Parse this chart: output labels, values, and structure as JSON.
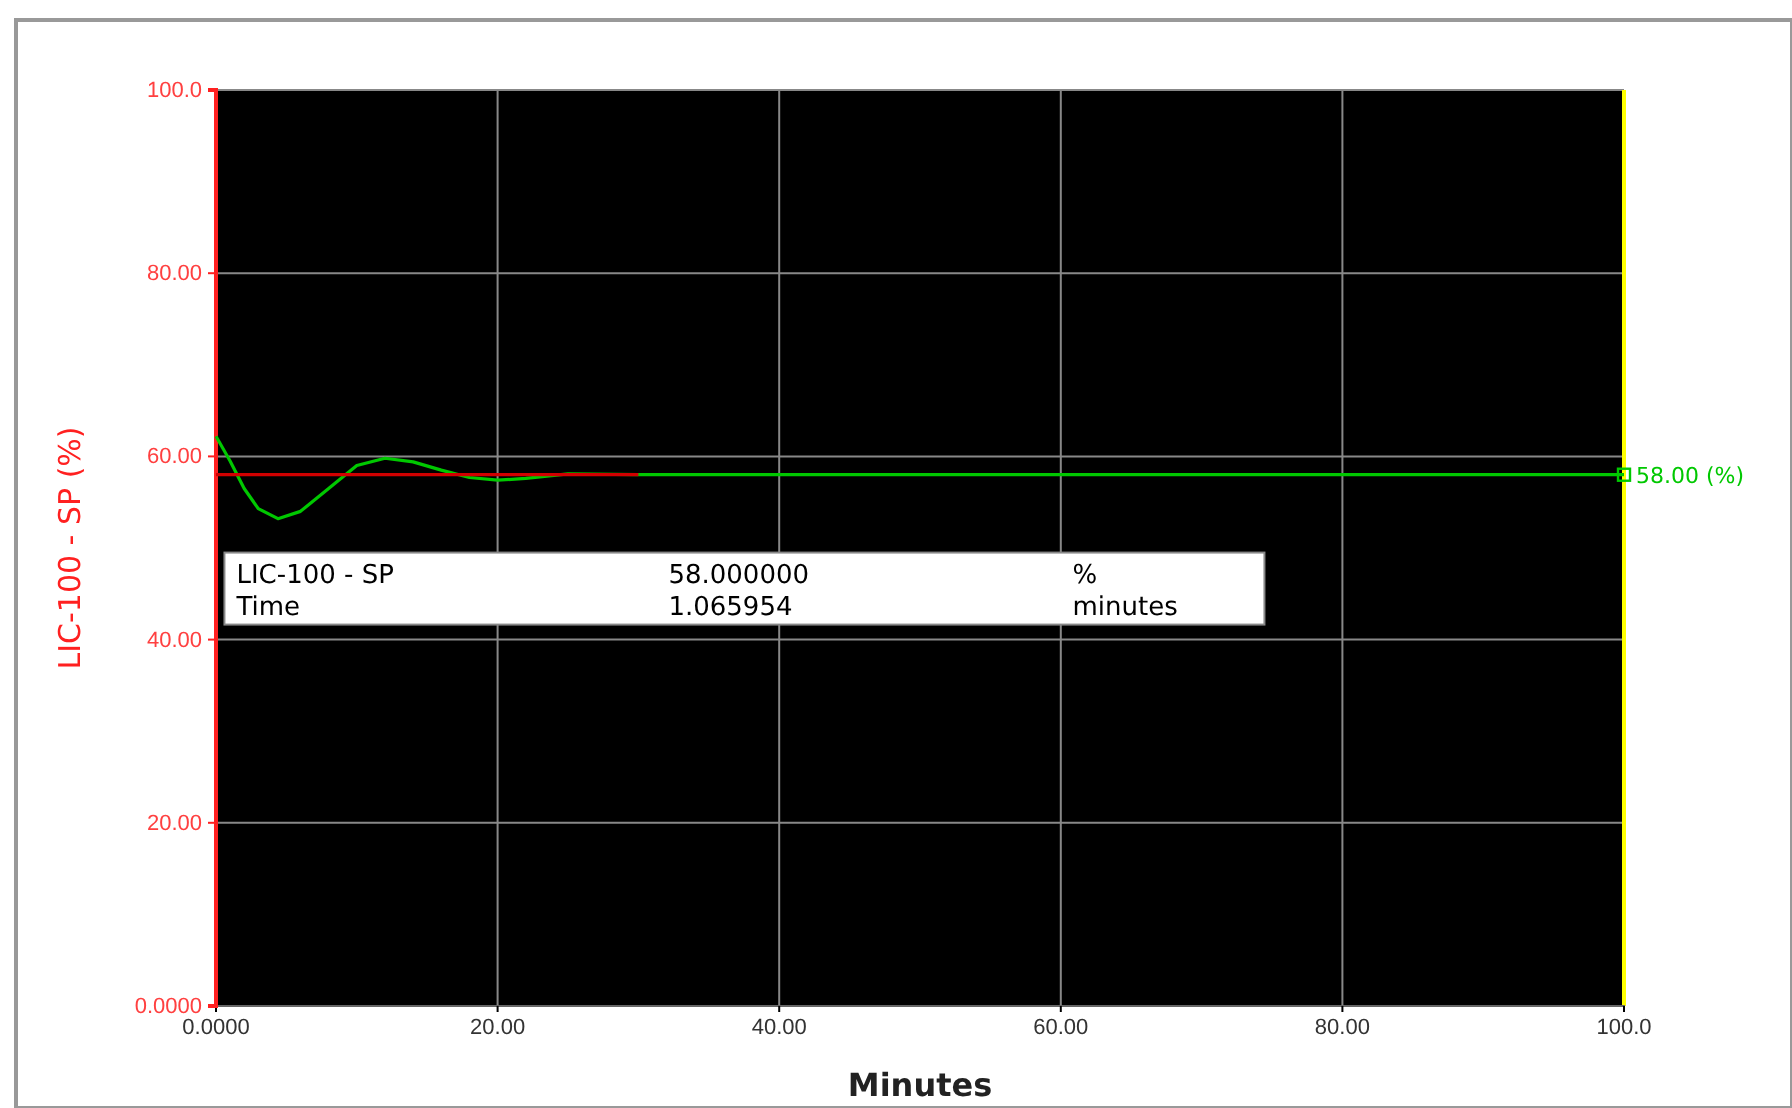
{
  "chart_data": {
    "type": "line",
    "xlabel": "Minutes",
    "ylabel": "LIC-100 - SP (%)",
    "xlim": [
      0,
      100
    ],
    "ylim": [
      0,
      100
    ],
    "xticks": [
      {
        "value": 0,
        "label": "0.0000"
      },
      {
        "value": 20,
        "label": "20.00"
      },
      {
        "value": 40,
        "label": "40.00"
      },
      {
        "value": 60,
        "label": "60.00"
      },
      {
        "value": 80,
        "label": "80.00"
      },
      {
        "value": 100,
        "label": "100.0"
      }
    ],
    "yticks": [
      {
        "value": 0,
        "label": "0.0000"
      },
      {
        "value": 20,
        "label": "20.00"
      },
      {
        "value": 40,
        "label": "40.00"
      },
      {
        "value": 60,
        "label": "60.00"
      },
      {
        "value": 80,
        "label": "80.00"
      },
      {
        "value": 100,
        "label": "100.0"
      }
    ],
    "grid": true,
    "marker": "none",
    "line_style": "solid",
    "series": [
      {
        "color": "#d00000",
        "x": [
          0,
          30
        ],
        "values": [
          58,
          58
        ]
      },
      {
        "color": "#00c800",
        "x": [
          0,
          1,
          2,
          3,
          4.4,
          6,
          8,
          10,
          12,
          14,
          16,
          18,
          20,
          22,
          25,
          30,
          100
        ],
        "values": [
          62.2,
          59.5,
          56.5,
          54.3,
          53.2,
          54,
          56.5,
          59,
          59.8,
          59.4,
          58.5,
          57.7,
          57.4,
          57.6,
          58.1,
          58,
          58
        ]
      }
    ],
    "annotations": [
      {
        "text": "58.00 (%)",
        "x": 100,
        "y": 58
      },
      "LIC-100 - SP",
      "58.000000",
      "%",
      "Time",
      "1.065954",
      "minutes"
    ]
  }
}
